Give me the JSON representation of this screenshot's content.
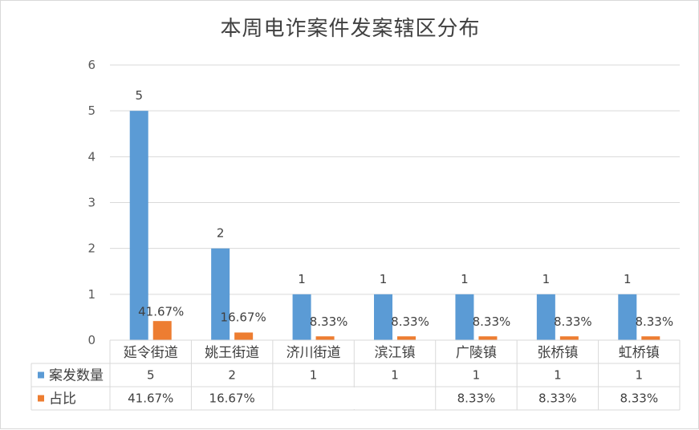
{
  "chart_data": {
    "type": "bar",
    "title": "本周电诈案件发案辖区分布",
    "categories": [
      "延令街道",
      "姚王街道",
      "济川街道",
      "滨江镇",
      "广陵镇",
      "张桥镇",
      "虹桥镇"
    ],
    "series": [
      {
        "name": "案发数量",
        "color": "#5b9bd5",
        "values": [
          5,
          2,
          1,
          1,
          1,
          1,
          1
        ],
        "labels": [
          "5",
          "2",
          "1",
          "1",
          "1",
          "1",
          "1"
        ],
        "table_values": [
          "5",
          "2",
          "1",
          "1",
          "1",
          "1",
          "1"
        ]
      },
      {
        "name": "占比",
        "color": "#ed7d31",
        "values": [
          0.4167,
          0.1667,
          0.0833,
          0.0833,
          0.0833,
          0.0833,
          0.0833
        ],
        "labels": [
          "41.67%",
          "16.67%",
          "8.33%",
          "8.33%",
          "8.33%",
          "8.33%",
          "8.33%"
        ],
        "table_values": [
          "41.67%",
          "16.67%",
          "",
          "",
          "8.33%",
          "8.33%",
          "8.33%"
        ]
      }
    ],
    "ylim": [
      0,
      6
    ],
    "yticks": [
      "0",
      "1",
      "2",
      "3",
      "4",
      "5",
      "6"
    ],
    "grid": true,
    "legend": "data-table"
  }
}
